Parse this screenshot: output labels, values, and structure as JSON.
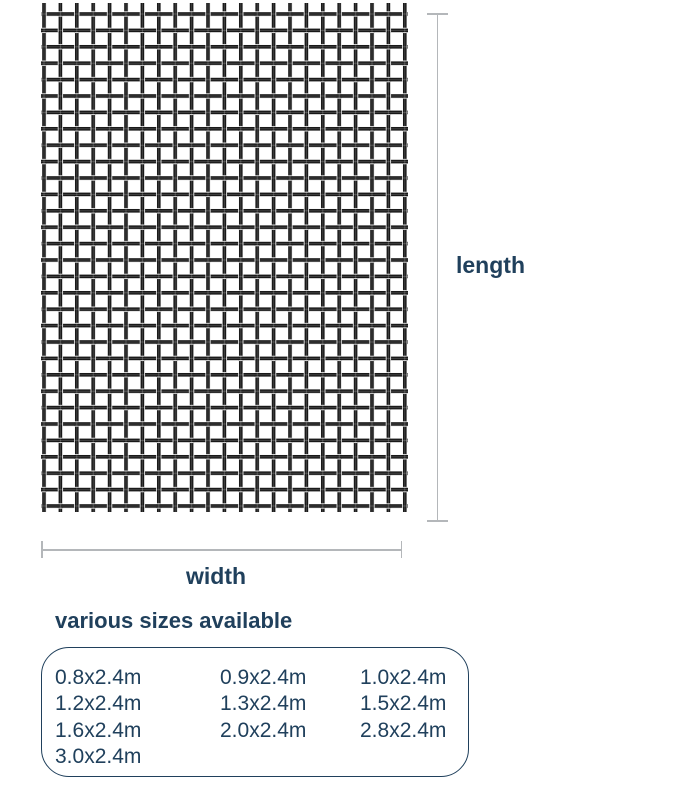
{
  "diagram": {
    "length_label": "length",
    "width_label": "width"
  },
  "sizes": {
    "heading": "various sizes available",
    "items": [
      "0.8x2.4m",
      "0.9x2.4m",
      "1.0x2.4m",
      "1.2x2.4m",
      "1.3x2.4m",
      "1.5x2.4m",
      "1.6x2.4m",
      "2.0x2.4m",
      "2.8x2.4m",
      "3.0x2.4m"
    ]
  },
  "colors": {
    "text_navy": "#20405c",
    "dimension_line": "#b4b7ba",
    "mesh_wire": "#161616"
  }
}
